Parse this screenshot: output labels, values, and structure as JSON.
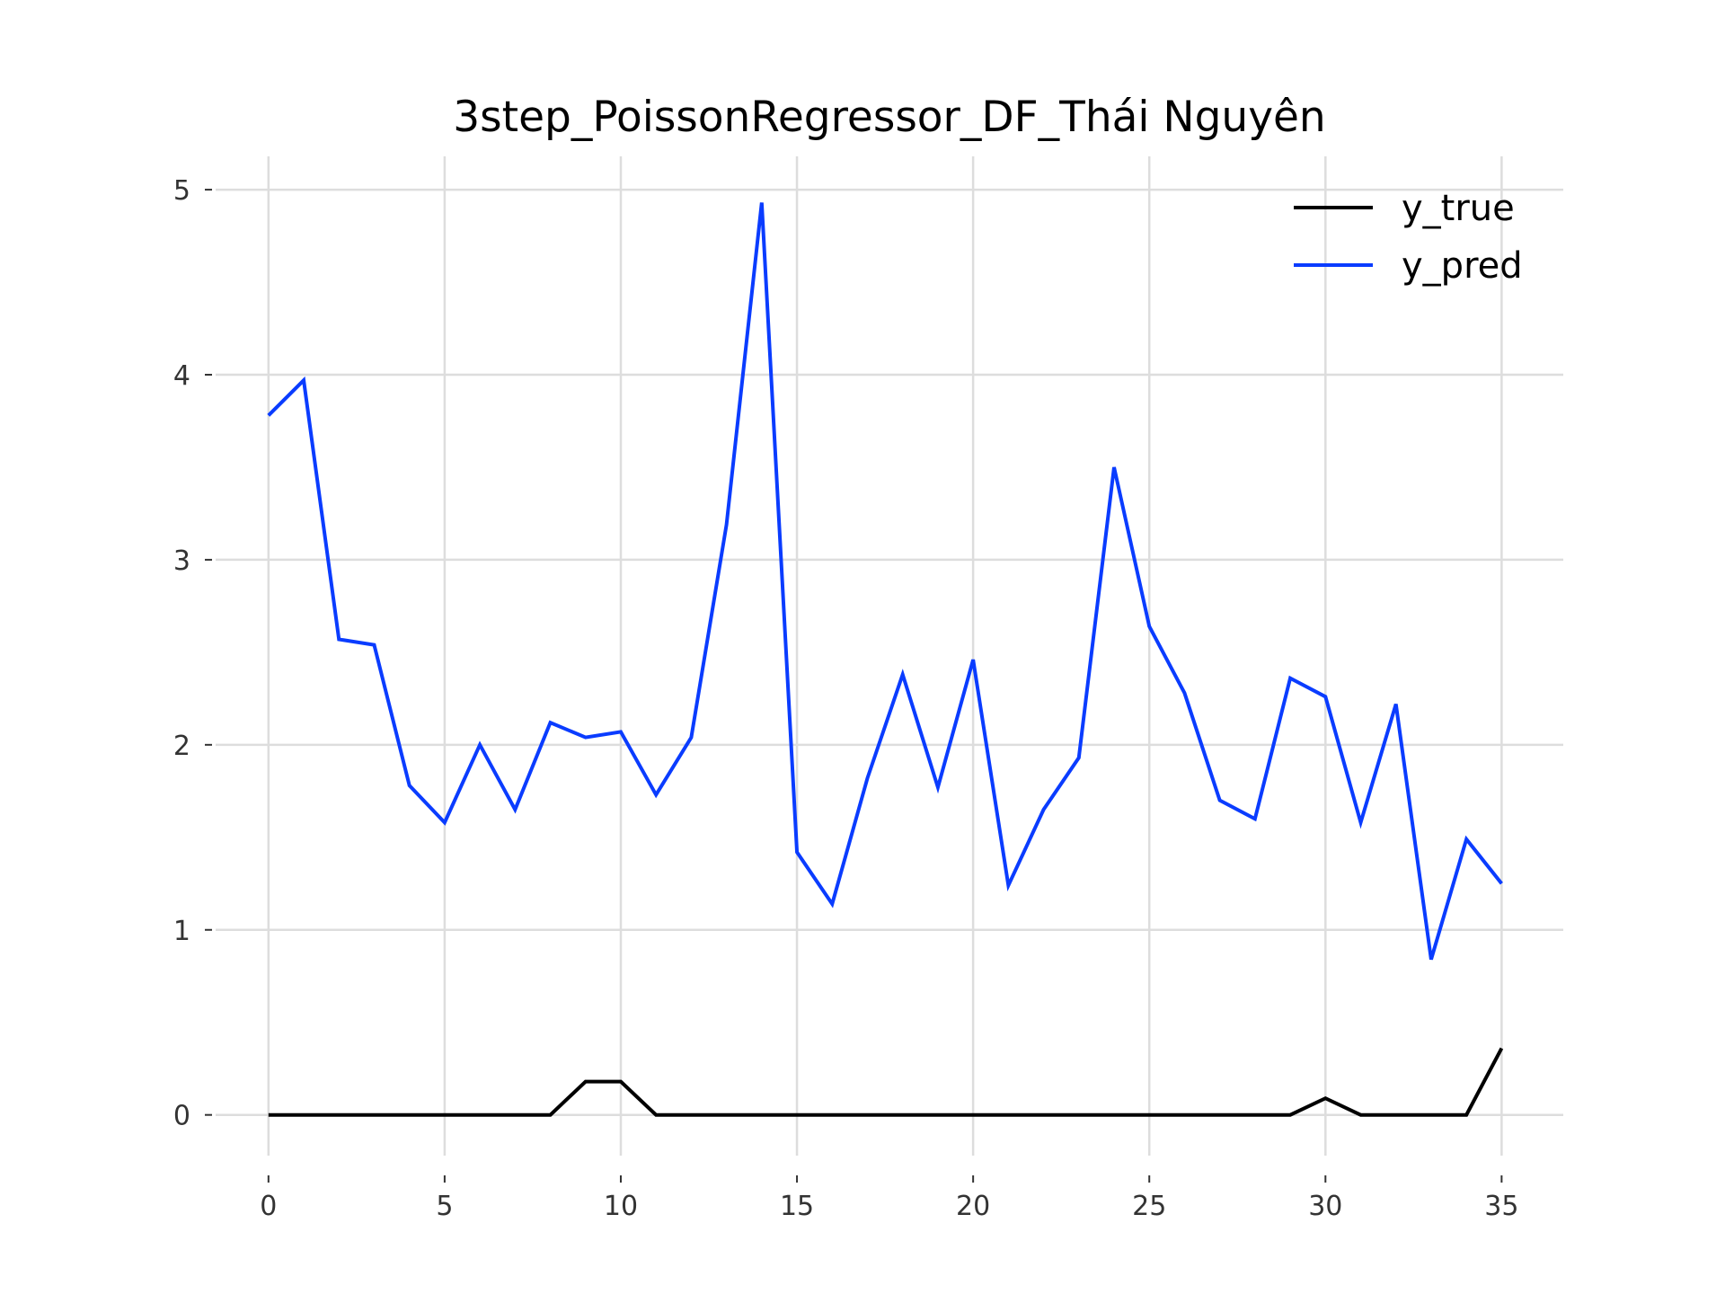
{
  "chart_data": {
    "type": "line",
    "title": "3step_PoissonRegressor_DF_Thái Nguyên",
    "xlabel": "",
    "ylabel": "",
    "x": [
      0,
      1,
      2,
      3,
      4,
      5,
      6,
      7,
      8,
      9,
      10,
      11,
      12,
      13,
      14,
      15,
      16,
      17,
      18,
      19,
      20,
      21,
      22,
      23,
      24,
      25,
      26,
      27,
      28,
      29,
      30,
      31,
      32,
      33,
      34,
      35
    ],
    "xlim": [
      -1.5,
      36.75
    ],
    "ylim": [
      -0.22,
      5.18
    ],
    "xticks": [
      0,
      5,
      10,
      15,
      20,
      25,
      30,
      35
    ],
    "yticks": [
      0,
      1,
      2,
      3,
      4,
      5
    ],
    "grid": true,
    "legend_position": "top-right",
    "series": [
      {
        "name": "y_true",
        "color": "#000000",
        "values": [
          0,
          0,
          0,
          0,
          0,
          0,
          0,
          0,
          0,
          0.18,
          0.18,
          0,
          0,
          0,
          0,
          0,
          0,
          0,
          0,
          0,
          0,
          0,
          0,
          0,
          0,
          0,
          0,
          0,
          0,
          0,
          0.09,
          0,
          0,
          0,
          0,
          0.36
        ]
      },
      {
        "name": "y_pred",
        "color": "#0a3cff",
        "values": [
          3.78,
          3.97,
          2.57,
          2.54,
          1.78,
          1.58,
          2.0,
          1.65,
          2.12,
          2.04,
          2.07,
          1.73,
          2.04,
          3.19,
          4.93,
          1.42,
          1.14,
          1.82,
          2.38,
          1.77,
          2.46,
          1.24,
          1.65,
          1.93,
          3.5,
          2.64,
          2.28,
          1.7,
          1.6,
          2.36,
          2.26,
          1.58,
          2.22,
          0.84,
          1.49,
          1.25
        ]
      }
    ]
  }
}
